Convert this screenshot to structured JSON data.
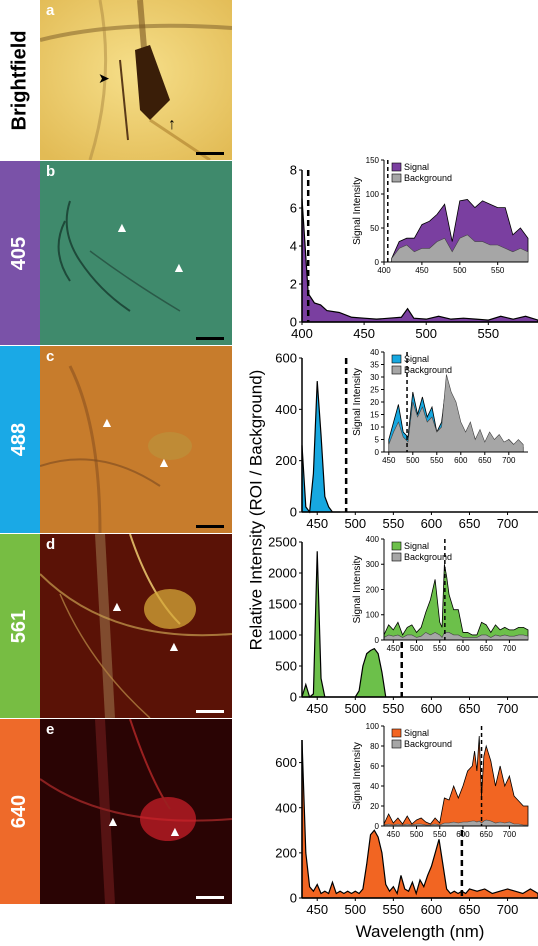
{
  "panels": [
    {
      "letter": "a",
      "label": "Brightfield",
      "label_bg": "#ffffff",
      "label_color": "#000000"
    },
    {
      "letter": "b",
      "label": "405",
      "label_bg": "#7a52a8",
      "label_color": "#ffffff"
    },
    {
      "letter": "c",
      "label": "488",
      "label_bg": "#1aa9e6",
      "label_color": "#ffffff"
    },
    {
      "letter": "d",
      "label": "561",
      "label_bg": "#77bd43",
      "label_color": "#ffffff"
    },
    {
      "letter": "e",
      "label": "640",
      "label_bg": "#ee6a2a",
      "label_color": "#ffffff"
    }
  ],
  "y_axis_label": "Relative Intensity (ROI / Background)",
  "x_axis_label": "Wavelength (nm)",
  "inset_ylabel": "Signal Intensity",
  "legend": {
    "signal": "Signal",
    "background": "Background"
  },
  "colors": {
    "violet": "#7a3fa0",
    "blue": "#17a8e0",
    "green": "#6cc04a",
    "orange": "#f26522",
    "background_fill": "#a6a6a6"
  },
  "chart_data": [
    {
      "type": "area",
      "panel": "b",
      "color": "#7a3fa0",
      "x": [
        400,
        405,
        410,
        415,
        420,
        430,
        440,
        450,
        460,
        470,
        480,
        485,
        490,
        500,
        510,
        520,
        530,
        540,
        550,
        560,
        570,
        580,
        590
      ],
      "values": [
        6.5,
        1.5,
        1.0,
        0.9,
        0.6,
        0.5,
        0.25,
        0.2,
        0.15,
        0.2,
        0.25,
        0.7,
        0.2,
        0.15,
        0.3,
        0.15,
        0.2,
        0.15,
        0.1,
        0.3,
        0.15,
        0.3,
        0.1
      ],
      "xlim": [
        400,
        590
      ],
      "ylim": [
        0,
        8
      ],
      "xticks": [
        400,
        450,
        500,
        550
      ],
      "yticks": [
        0,
        2,
        4,
        6,
        8
      ],
      "excitation_line": 405,
      "inset": {
        "xlim": [
          400,
          590
        ],
        "ylim": [
          0,
          150
        ],
        "xticks": [
          400,
          450,
          500,
          550
        ],
        "yticks": [
          0,
          50,
          100,
          150
        ],
        "excitation_line": 405,
        "x": [
          410,
          420,
          430,
          440,
          450,
          460,
          470,
          480,
          490,
          500,
          510,
          520,
          530,
          540,
          550,
          560,
          570,
          580,
          590
        ],
        "signal": [
          5,
          30,
          35,
          35,
          55,
          60,
          70,
          85,
          30,
          90,
          92,
          80,
          90,
          85,
          80,
          80,
          40,
          50,
          35
        ],
        "background": [
          5,
          20,
          25,
          15,
          20,
          20,
          30,
          35,
          15,
          35,
          40,
          30,
          30,
          25,
          25,
          20,
          15,
          20,
          15
        ]
      }
    },
    {
      "type": "area",
      "panel": "c",
      "color": "#17a8e0",
      "x": [
        430,
        435,
        440,
        445,
        450,
        455,
        460,
        465,
        470,
        475,
        480
      ],
      "values": [
        260,
        20,
        0,
        150,
        510,
        300,
        60,
        20,
        0,
        0,
        0
      ],
      "xlim": [
        430,
        740
      ],
      "ylim": [
        0,
        600
      ],
      "xticks": [
        450,
        500,
        550,
        600,
        650,
        700
      ],
      "yticks": [
        0,
        200,
        400,
        600
      ],
      "excitation_line": 488,
      "inset": {
        "xlim": [
          440,
          740
        ],
        "ylim": [
          0,
          40
        ],
        "xticks": [
          450,
          500,
          550,
          600,
          650,
          700
        ],
        "yticks": [
          0,
          5,
          10,
          15,
          20,
          25,
          30,
          35,
          40
        ],
        "excitation_line": 488,
        "x": [
          450,
          460,
          470,
          480,
          490,
          500,
          510,
          520,
          530,
          540,
          550,
          560,
          570,
          580,
          590,
          600,
          610,
          620,
          630,
          640,
          650,
          660,
          670,
          680,
          690,
          700,
          710,
          720,
          730
        ],
        "signal": [
          5,
          12,
          19,
          8,
          6,
          24,
          15,
          22,
          14,
          18,
          8,
          12,
          28,
          18,
          16,
          10,
          7,
          11,
          5,
          8,
          3,
          7,
          4,
          6,
          3,
          5,
          3,
          4,
          2
        ],
        "background": [
          3,
          8,
          12,
          6,
          4,
          20,
          14,
          18,
          12,
          14,
          8,
          10,
          31,
          24,
          20,
          12,
          8,
          12,
          5,
          9,
          4,
          8,
          5,
          7,
          4,
          5,
          3,
          5,
          3
        ]
      }
    },
    {
      "type": "area",
      "panel": "d",
      "color": "#6cc04a",
      "x": [
        430,
        435,
        440,
        445,
        450,
        455,
        460,
        465,
        470,
        475,
        480,
        485,
        490,
        495,
        500,
        505,
        510,
        515,
        520,
        525,
        530,
        535,
        540,
        545,
        550,
        555,
        560
      ],
      "values": [
        0,
        200,
        0,
        50,
        2350,
        300,
        0,
        0,
        0,
        0,
        0,
        0,
        0,
        0,
        0,
        100,
        500,
        700,
        750,
        780,
        700,
        400,
        0,
        0,
        0,
        0,
        0
      ],
      "xlim": [
        430,
        740
      ],
      "ylim": [
        0,
        2500
      ],
      "xticks": [
        450,
        500,
        550,
        600,
        650,
        700
      ],
      "yticks": [
        0,
        500,
        1000,
        1500,
        2000,
        2500
      ],
      "excitation_line": 561,
      "inset": {
        "xlim": [
          430,
          740
        ],
        "ylim": [
          0,
          400
        ],
        "xticks": [
          450,
          500,
          550,
          600,
          650,
          700
        ],
        "yticks": [
          0,
          100,
          200,
          300,
          400
        ],
        "excitation_line": 561,
        "x": [
          430,
          440,
          450,
          460,
          470,
          480,
          490,
          500,
          510,
          520,
          530,
          540,
          550,
          555,
          560,
          565,
          570,
          580,
          590,
          600,
          610,
          620,
          630,
          640,
          650,
          660,
          670,
          680,
          690,
          700,
          710,
          720,
          730,
          740
        ],
        "signal": [
          20,
          60,
          40,
          70,
          20,
          50,
          60,
          30,
          50,
          110,
          160,
          240,
          70,
          50,
          300,
          250,
          180,
          120,
          120,
          30,
          30,
          20,
          20,
          70,
          60,
          30,
          60,
          40,
          50,
          40,
          40,
          50,
          50,
          40
        ],
        "background": [
          10,
          20,
          15,
          20,
          10,
          20,
          20,
          10,
          15,
          30,
          20,
          30,
          20,
          10,
          30,
          30,
          30,
          20,
          20,
          10,
          10,
          10,
          10,
          20,
          20,
          10,
          20,
          15,
          20,
          15,
          15,
          20,
          20,
          15
        ]
      }
    },
    {
      "type": "area",
      "panel": "e",
      "color": "#f26522",
      "x": [
        430,
        435,
        440,
        445,
        450,
        455,
        460,
        465,
        470,
        475,
        480,
        485,
        490,
        495,
        500,
        505,
        510,
        515,
        520,
        525,
        530,
        535,
        540,
        545,
        550,
        555,
        560,
        565,
        570,
        575,
        580,
        585,
        590,
        595,
        600,
        605,
        610,
        615,
        620,
        625,
        630,
        635,
        640,
        645,
        650,
        660,
        670,
        680,
        690,
        700,
        710,
        720,
        730,
        740
      ],
      "values": [
        700,
        200,
        50,
        30,
        60,
        20,
        30,
        20,
        70,
        20,
        30,
        20,
        30,
        20,
        30,
        20,
        40,
        150,
        280,
        300,
        270,
        200,
        60,
        30,
        50,
        20,
        100,
        40,
        30,
        70,
        20,
        80,
        50,
        100,
        140,
        200,
        260,
        150,
        40,
        20,
        30,
        20,
        30,
        20,
        40,
        30,
        40,
        20,
        30,
        40,
        30,
        20,
        40,
        20
      ],
      "xlim": [
        430,
        740
      ],
      "ylim": [
        0,
        700
      ],
      "xticks": [
        450,
        500,
        550,
        600,
        650,
        700
      ],
      "yticks": [
        0,
        200,
        400,
        600
      ],
      "excitation_line": 640,
      "inset": {
        "xlim": [
          430,
          740
        ],
        "ylim": [
          0,
          100
        ],
        "xticks": [
          450,
          500,
          550,
          600,
          650,
          700
        ],
        "yticks": [
          0,
          20,
          40,
          60,
          80,
          100
        ],
        "excitation_line": 640,
        "x": [
          430,
          440,
          450,
          460,
          470,
          480,
          490,
          500,
          510,
          520,
          530,
          540,
          550,
          560,
          570,
          580,
          590,
          600,
          610,
          620,
          625,
          630,
          635,
          640,
          645,
          650,
          660,
          670,
          680,
          690,
          700,
          710,
          720,
          730,
          740
        ],
        "signal": [
          2,
          12,
          3,
          8,
          2,
          10,
          2,
          6,
          8,
          4,
          2,
          8,
          3,
          28,
          26,
          40,
          28,
          40,
          55,
          60,
          75,
          55,
          90,
          30,
          70,
          80,
          65,
          40,
          60,
          40,
          50,
          30,
          25,
          20,
          20
        ],
        "background": [
          1,
          2,
          1,
          2,
          1,
          2,
          1,
          2,
          2,
          1,
          1,
          2,
          1,
          3,
          3,
          4,
          3,
          4,
          4,
          5,
          5,
          4,
          5,
          3,
          5,
          6,
          5,
          3,
          4,
          3,
          4,
          2,
          2,
          1,
          1
        ]
      }
    }
  ]
}
